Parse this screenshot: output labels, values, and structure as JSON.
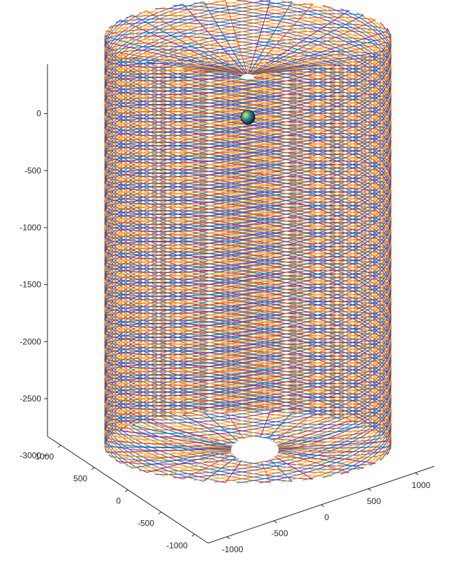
{
  "chart_data": {
    "type": "line",
    "plot_kind": "3d-helix",
    "title": "",
    "xlabel": "",
    "ylabel": "",
    "zlabel": "",
    "grid": false,
    "legend": "none",
    "radius": 1200,
    "z_range": [
      -3400,
      200
    ],
    "xlim": [
      -1200,
      1200
    ],
    "ylim": [
      -1200,
      1200
    ],
    "z_ticks": [
      0,
      -500,
      -1000,
      -1500,
      -2000,
      -2500,
      -3000
    ],
    "z_tick_labels": [
      "0",
      "-500",
      "-1000",
      "-1500",
      "-2000",
      "-2500",
      "-3000"
    ],
    "x_ticks": [
      -1000,
      -500,
      0,
      500,
      1000
    ],
    "x_tick_labels": [
      "-1000",
      "-500",
      "0",
      "500",
      "1000"
    ],
    "y_ticks": [
      -1000,
      -500,
      0,
      500,
      1000
    ],
    "y_tick_labels": [
      "-1000",
      "-500",
      "0",
      "500",
      "1000"
    ],
    "series_colors": [
      "#0072BD",
      "#D95319",
      "#EDB120",
      "#7E2F8E"
    ],
    "strands_per_direction": 40,
    "strands_in_bundle": 40,
    "helix_turns": 3,
    "marker": {
      "shape": "sphere",
      "x": 0,
      "y": 600,
      "z": -350
    }
  }
}
